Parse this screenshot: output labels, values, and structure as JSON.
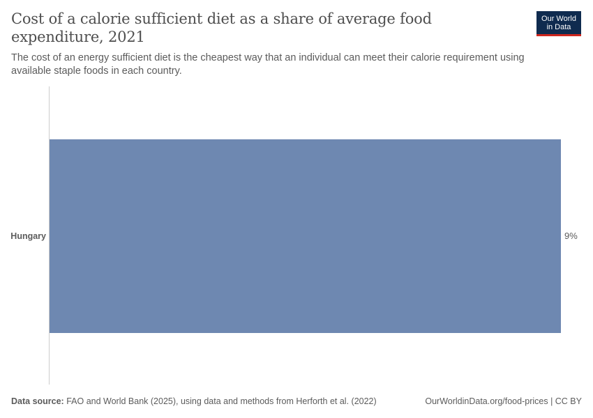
{
  "header": {
    "title": "Cost of a calorie sufficient diet as a share of average food expenditure, 2021",
    "subtitle": "The cost of an energy sufficient diet is the cheapest way that an individual can meet their calorie requirement using available staple foods in each country.",
    "logo_line1": "Our World",
    "logo_line2": "in Data"
  },
  "colors": {
    "bar": "#6e88b1",
    "axis": "#cccccc",
    "label": "#5b5b5b",
    "logo_bg": "#0f2b4f",
    "logo_accent": "#ce261e"
  },
  "chart_data": {
    "type": "bar",
    "orientation": "horizontal",
    "categories": [
      "Hungary"
    ],
    "values": [
      9
    ],
    "value_labels": [
      "9%"
    ],
    "unit": "%",
    "xlim": [
      0,
      9
    ],
    "grid": false,
    "legend": "none"
  },
  "footer": {
    "source_label": "Data source:",
    "source_text": "FAO and World Bank (2025), using data and methods from Herforth et al. (2022)",
    "credit": "OurWorldinData.org/food-prices | CC BY"
  }
}
